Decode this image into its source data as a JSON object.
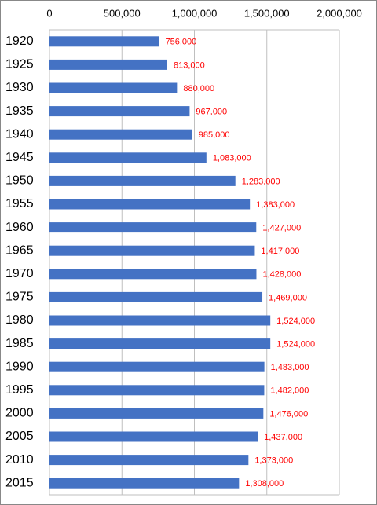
{
  "chart_data": {
    "type": "bar",
    "orientation": "horizontal",
    "categories": [
      "1920",
      "1925",
      "1930",
      "1935",
      "1940",
      "1945",
      "1950",
      "1955",
      "1960",
      "1965",
      "1970",
      "1975",
      "1980",
      "1985",
      "1990",
      "1995",
      "2000",
      "2005",
      "2010",
      "2015"
    ],
    "values": [
      756000,
      813000,
      880000,
      967000,
      985000,
      1083000,
      1283000,
      1383000,
      1427000,
      1417000,
      1428000,
      1469000,
      1524000,
      1524000,
      1483000,
      1482000,
      1476000,
      1437000,
      1373000,
      1308000
    ],
    "value_labels": [
      "756,000",
      "813,000",
      "880,000",
      "967,000",
      "985,000",
      "1,083,000",
      "1,283,000",
      "1,383,000",
      "1,427,000",
      "1,417,000",
      "1,428,000",
      "1,469,000",
      "1,524,000",
      "1,524,000",
      "1,483,000",
      "1,482,000",
      "1,476,000",
      "1,437,000",
      "1,373,000",
      "1,308,000"
    ],
    "color": "#4472c4",
    "value_label_color": "#ff0000",
    "xlim": [
      0,
      2000000
    ],
    "xticks": [
      0,
      {
        "value": 500000,
        "label": "500,000"
      },
      {
        "value": 1000000,
        "label": "1,000,000"
      },
      {
        "value": 1500000,
        "label": "1,500,000"
      },
      {
        "value": 2000000,
        "label": "2,000,000"
      }
    ],
    "grid": true
  }
}
